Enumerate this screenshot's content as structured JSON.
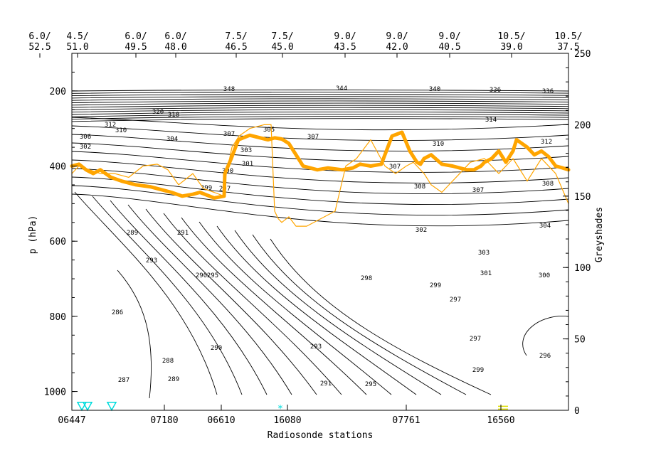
{
  "chart_data": {
    "type": "line",
    "title": "",
    "xlabel": "Radiosonde stations",
    "ylabel": "p (hPa)",
    "y2label": "Greyshades",
    "y_ticks": [
      "200",
      "400",
      "600",
      "800",
      "1000"
    ],
    "y_tick_values": [
      200,
      400,
      600,
      800,
      1000
    ],
    "ylim": [
      100,
      1050
    ],
    "y2_ticks": [
      "0",
      "50",
      "100",
      "150",
      "200",
      "250"
    ],
    "y2_tick_values": [
      0,
      50,
      100,
      150,
      200,
      250
    ],
    "y2lim": [
      0,
      250
    ],
    "x_tick_labels": [
      "06447",
      "07180",
      "06610",
      "16080",
      "07761",
      "16560"
    ],
    "top_labels": [
      {
        "line1": "6.0/",
        "line2": "52.5"
      },
      {
        "line1": "4.5/",
        "line2": "51.0"
      },
      {
        "line1": "6.0/",
        "line2": "49.5"
      },
      {
        "line1": "6.0/",
        "line2": "48.0"
      },
      {
        "line1": "7.5/",
        "line2": "46.5"
      },
      {
        "line1": "7.5/",
        "line2": "45.0"
      },
      {
        "line1": "9.0/",
        "line2": "43.5"
      },
      {
        "line1": "9.0/",
        "line2": "42.0"
      },
      {
        "line1": "9.0/",
        "line2": "40.5"
      },
      {
        "line1": "10.5/",
        "line2": "39.0"
      },
      {
        "line1": "10.5/",
        "line2": "37.5"
      }
    ],
    "contour_labels": [
      "348",
      "344",
      "340",
      "336",
      "320",
      "318",
      "314",
      "312",
      "310",
      "308",
      "307",
      "306",
      "305",
      "304",
      "303",
      "302",
      "301",
      "300",
      "299",
      "298",
      "297",
      "296",
      "295",
      "293",
      "292",
      "291",
      "290",
      "289",
      "288",
      "287",
      "286"
    ],
    "series": [
      {
        "color": "#ffa500",
        "style": "thick",
        "x": [
          0,
          10,
          20,
          30,
          40,
          55,
          70,
          90,
          110,
          120,
          140,
          155,
          170,
          180,
          200,
          214,
          215,
          224,
          234,
          250,
          265,
          275,
          276,
          285,
          295,
          305,
          325,
          345,
          360,
          380,
          395,
          405,
          420,
          435,
          450,
          464,
          475,
          485,
          490,
          495,
          505,
          520,
          535,
          555,
          565,
          575,
          580,
          590,
          600,
          610,
          620,
          625,
          640,
          650,
          660,
          670,
          680,
          690,
          698
        ],
        "y": [
          400,
          395,
          410,
          420,
          410,
          430,
          440,
          450,
          455,
          460,
          470,
          480,
          475,
          470,
          485,
          480,
          420,
          380,
          330,
          318,
          325,
          330,
          330,
          325,
          328,
          340,
          400,
          410,
          405,
          410,
          405,
          395,
          400,
          395,
          320,
          310,
          360,
          390,
          395,
          380,
          370,
          395,
          400,
          410,
          410,
          400,
          390,
          380,
          360,
          390,
          360,
          330,
          350,
          370,
          360,
          375,
          400,
          405,
          410
        ]
      },
      {
        "color": "#ffa500",
        "style": "thin",
        "x": [
          0,
          10,
          25,
          40,
          60,
          80,
          100,
          120,
          135,
          150,
          170,
          185,
          200,
          214,
          215,
          225,
          235,
          250,
          270,
          280,
          285,
          290,
          295,
          305,
          315,
          330,
          350,
          370,
          385,
          400,
          420,
          440,
          455,
          470,
          480,
          495,
          505,
          520,
          540,
          560,
          580,
          600,
          620,
          640,
          660,
          680,
          698
        ],
        "y": [
          420,
          400,
          410,
          420,
          420,
          430,
          400,
          395,
          410,
          450,
          420,
          460,
          470,
          480,
          440,
          350,
          320,
          300,
          290,
          290,
          520,
          540,
          550,
          535,
          560,
          560,
          540,
          520,
          400,
          380,
          330,
          400,
          420,
          400,
          390,
          420,
          450,
          470,
          430,
          390,
          380,
          420,
          380,
          440,
          380,
          420,
          500
        ]
      }
    ],
    "markers": [
      {
        "x": 14,
        "y": 1040,
        "symbol": "triangle-down",
        "color": "#00dddd"
      },
      {
        "x": 22,
        "y": 1040,
        "symbol": "triangle-down",
        "color": "#00dddd"
      },
      {
        "x": 56,
        "y": 1040,
        "symbol": "triangle-down",
        "color": "#00dddd"
      },
      {
        "x": 293,
        "y": 1045,
        "symbol": "star",
        "color": "#00dddd"
      },
      {
        "x": 606,
        "y": 1045,
        "symbol": "equals",
        "color": "#dddd00"
      }
    ]
  }
}
